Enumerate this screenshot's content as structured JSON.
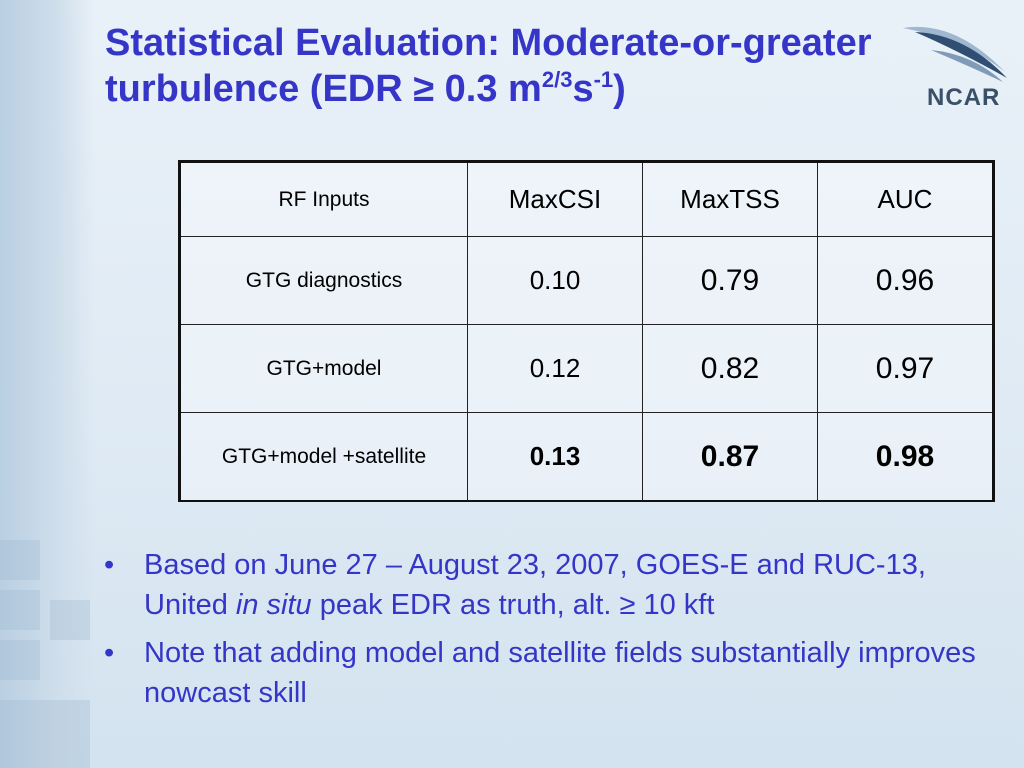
{
  "title": {
    "main": "Statistical Evaluation: Moderate-or-greater turbulence (EDR ≥ 0.3 m",
    "sup1": "2/3",
    "mid": "s",
    "sup2": "-1",
    "end": ")"
  },
  "logo": {
    "text": "NCAR",
    "icon": "ncar-swoosh-icon"
  },
  "table": {
    "headers": [
      "RF Inputs",
      "MaxCSI",
      "MaxTSS",
      "AUC"
    ],
    "rows": [
      {
        "label": "GTG diagnostics",
        "csi": "0.10",
        "tss": "0.79",
        "auc": "0.96"
      },
      {
        "label": "GTG+model",
        "csi": "0.12",
        "tss": "0.82",
        "auc": "0.97"
      },
      {
        "label": "GTG+model +satellite",
        "csi": "0.13",
        "tss": "0.87",
        "auc": "0.98"
      }
    ]
  },
  "bullets": [
    {
      "pre": "Based on June 27 – August 23, 2007, GOES-E and RUC-13, United ",
      "italic": "in situ",
      "post": " peak EDR as truth, alt. ≥ 10 kft"
    },
    {
      "pre": "Note that adding model and satellite fields substantially improves nowcast skill",
      "italic": "",
      "post": ""
    }
  ],
  "colors": {
    "title": "#3535c8",
    "bullet_text": "#3535c8",
    "background": "#e4eef6"
  }
}
